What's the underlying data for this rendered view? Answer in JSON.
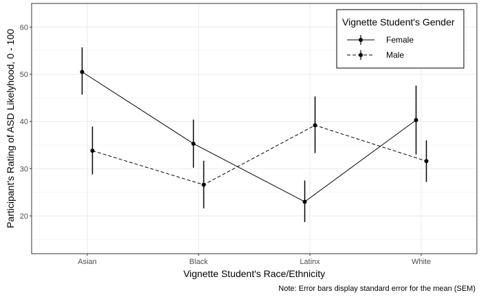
{
  "chart_data": {
    "type": "line",
    "title": "",
    "xlabel": "Vignette Student's Race/Ethnicity",
    "ylabel": "Participant's Rating of ASD Likelyhood, 0 - 100",
    "caption": "Note: Error bars display standard error for the mean (SEM)",
    "categories": [
      "Asian",
      "Black",
      "Latinx",
      "White"
    ],
    "ylim": [
      12,
      65
    ],
    "yticks": [
      20,
      30,
      40,
      50,
      60
    ],
    "grid": true,
    "legend": {
      "title": "Vignette Student's Gender",
      "placement": "top-right"
    },
    "series": [
      {
        "name": "Female",
        "linestyle": "solid",
        "color": "#000000",
        "values": [
          50.5,
          35.3,
          23.0,
          40.3
        ],
        "error_low": [
          45.7,
          30.2,
          18.7,
          33.0
        ],
        "error_high": [
          55.7,
          40.4,
          27.5,
          47.6
        ]
      },
      {
        "name": "Male",
        "linestyle": "dashed",
        "color": "#000000",
        "values": [
          33.8,
          26.6,
          39.2,
          31.6
        ],
        "error_low": [
          28.8,
          21.6,
          33.3,
          27.2
        ],
        "error_high": [
          38.9,
          31.7,
          45.3,
          36.0
        ]
      }
    ]
  }
}
